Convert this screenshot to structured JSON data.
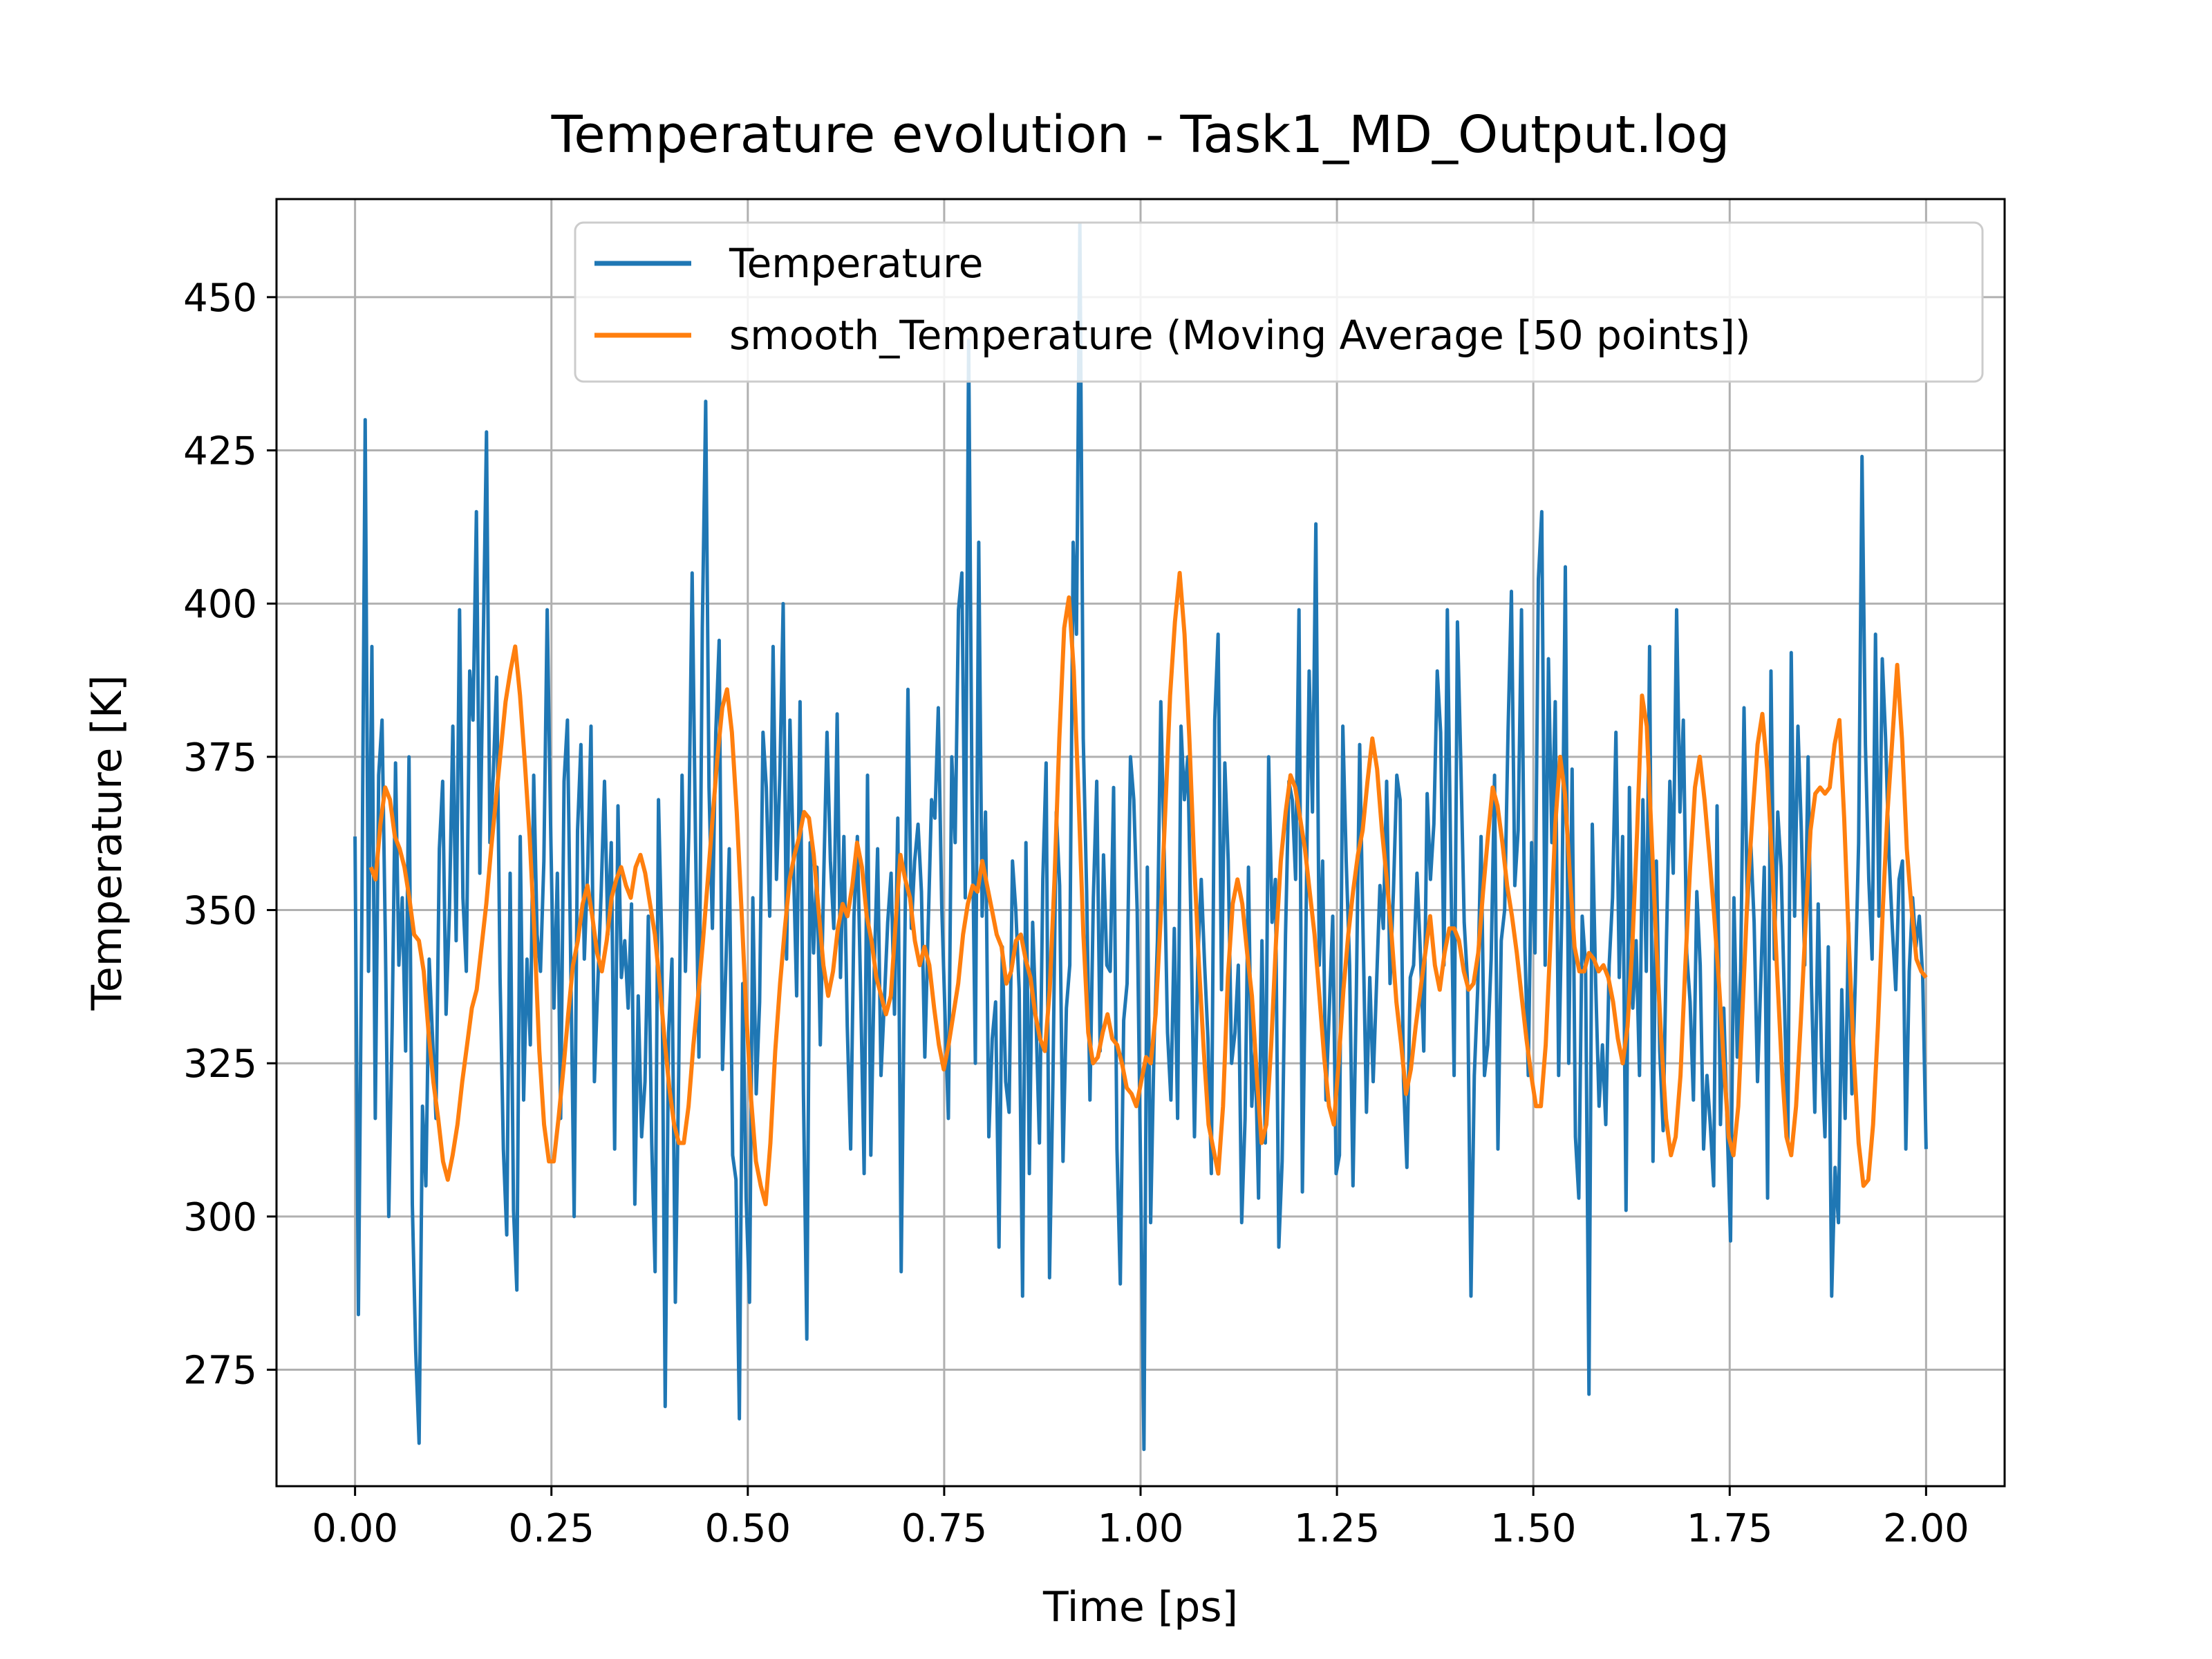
{
  "chart_data": {
    "type": "line",
    "title": "Temperature evolution - Task1_MD_Output.log",
    "xlabel": "Time [ps]",
    "ylabel": "Temperature [K]",
    "xlim": [
      -0.1,
      2.1
    ],
    "ylim": [
      256,
      466
    ],
    "xticks": [
      0.0,
      0.25,
      0.5,
      0.75,
      1.0,
      1.25,
      1.5,
      1.75,
      2.0
    ],
    "xtick_labels": [
      "0.00",
      "0.25",
      "0.50",
      "0.75",
      "1.00",
      "1.25",
      "1.50",
      "1.75",
      "2.00"
    ],
    "yticks": [
      275,
      300,
      325,
      350,
      375,
      400,
      425,
      450
    ],
    "ytick_labels": [
      "275",
      "300",
      "325",
      "350",
      "375",
      "400",
      "425",
      "450"
    ],
    "grid": true,
    "legend_position": "top-right",
    "series": [
      {
        "name": "Temperature",
        "color": "#1f77b4",
        "x_start": 0.0,
        "x_end": 2.0,
        "values": [
          362,
          284,
          348,
          430,
          340,
          393,
          316,
          372,
          381,
          345,
          300,
          331,
          374,
          341,
          352,
          327,
          375,
          302,
          278,
          263,
          318,
          305,
          342,
          329,
          316,
          360,
          371,
          333,
          350,
          380,
          345,
          399,
          352,
          340,
          389,
          381,
          415,
          356,
          393,
          428,
          361,
          372,
          388,
          339,
          311,
          297,
          356,
          301,
          288,
          362,
          319,
          342,
          328,
          372,
          346,
          340,
          358,
          399,
          364,
          334,
          356,
          316,
          371,
          381,
          340,
          300,
          363,
          377,
          342,
          357,
          380,
          322,
          338,
          353,
          371,
          346,
          361,
          311,
          367,
          339,
          345,
          334,
          351,
          302,
          336,
          313,
          322,
          349,
          312,
          291,
          368,
          344,
          269,
          330,
          342,
          286,
          323,
          372,
          340,
          363,
          405,
          361,
          326,
          396,
          433,
          370,
          347,
          379,
          394,
          324,
          341,
          360,
          310,
          306,
          267,
          338,
          303,
          286,
          352,
          320,
          335,
          379,
          370,
          349,
          393,
          355,
          372,
          400,
          342,
          381,
          358,
          336,
          384,
          320,
          280,
          361,
          343,
          357,
          328,
          355,
          379,
          358,
          347,
          382,
          339,
          362,
          331,
          311,
          349,
          362,
          336,
          307,
          372,
          310,
          340,
          360,
          323,
          335,
          348,
          356,
          333,
          365,
          291,
          341,
          386,
          347,
          358,
          364,
          353,
          326,
          347,
          368,
          365,
          383,
          351,
          333,
          316,
          375,
          361,
          399,
          405,
          352,
          443,
          369,
          325,
          410,
          349,
          366,
          313,
          329,
          335,
          295,
          344,
          322,
          317,
          358,
          350,
          337,
          287,
          361,
          307,
          348,
          332,
          312,
          355,
          374,
          290,
          322,
          366,
          354,
          309,
          334,
          341,
          410,
          395,
          462,
          378,
          353,
          319,
          352,
          371,
          327,
          359,
          341,
          340,
          370,
          311,
          289,
          332,
          338,
          375,
          368,
          350,
          308,
          262,
          357,
          299,
          328,
          345,
          384,
          360,
          330,
          319,
          347,
          316,
          380,
          368,
          375,
          346,
          313,
          342,
          355,
          341,
          329,
          307,
          381,
          395,
          337,
          374,
          358,
          325,
          330,
          341,
          299,
          316,
          357,
          318,
          328,
          303,
          345,
          312,
          375,
          348,
          355,
          295,
          309,
          346,
          371,
          368,
          355,
          399,
          304,
          345,
          389,
          366,
          413,
          341,
          358,
          319,
          334,
          349,
          307,
          310,
          380,
          358,
          341,
          305,
          336,
          377,
          346,
          317,
          339,
          322,
          338,
          354,
          347,
          371,
          338,
          353,
          372,
          368,
          322,
          308,
          339,
          341,
          356,
          343,
          327,
          369,
          355,
          364,
          389,
          379,
          341,
          399,
          358,
          323,
          397,
          374,
          348,
          338,
          287,
          323,
          337,
          362,
          323,
          328,
          342,
          372,
          311,
          345,
          350,
          379,
          402,
          354,
          363,
          399,
          344,
          323,
          361,
          343,
          404,
          415,
          341,
          391,
          361,
          384,
          323,
          351,
          406,
          325,
          373,
          313,
          303,
          349,
          341,
          271,
          364,
          338,
          318,
          328,
          315,
          341,
          352,
          379,
          339,
          362,
          301,
          370,
          334,
          345,
          323,
          368,
          340,
          393,
          309,
          358,
          327,
          314,
          345,
          371,
          356,
          399,
          366,
          381,
          343,
          335,
          319,
          353,
          341,
          311,
          323,
          315,
          305,
          367,
          315,
          334,
          315,
          296,
          352,
          326,
          340,
          383,
          350,
          361,
          348,
          322,
          339,
          357,
          303,
          389,
          342,
          366,
          357,
          335,
          312,
          392,
          349,
          380,
          363,
          341,
          375,
          338,
          317,
          351,
          326,
          313,
          344,
          287,
          308,
          299,
          337,
          316,
          348,
          320,
          338,
          361,
          424,
          377,
          355,
          342,
          395,
          349,
          391,
          378,
          359,
          347,
          337,
          355,
          358,
          311,
          340,
          352,
          344,
          349,
          339,
          311
        ]
      },
      {
        "name": "smooth_Temperature (Moving Average [50 points])",
        "color": "#ff7f0e",
        "x_start": 0.02,
        "x_end": 2.0,
        "values": [
          357,
          355,
          364,
          370,
          368,
          362,
          360,
          357,
          352,
          346,
          345,
          340,
          330,
          322,
          316,
          309,
          306,
          310,
          315,
          322,
          328,
          334,
          337,
          344,
          351,
          360,
          368,
          376,
          384,
          389,
          393,
          385,
          374,
          362,
          346,
          327,
          315,
          309,
          309,
          316,
          324,
          333,
          341,
          345,
          351,
          354,
          349,
          343,
          340,
          345,
          352,
          355,
          357,
          354,
          352,
          357,
          359,
          356,
          351,
          346,
          338,
          329,
          321,
          315,
          312,
          312,
          318,
          328,
          336,
          345,
          355,
          365,
          375,
          383,
          386,
          379,
          366,
          350,
          333,
          319,
          309,
          305,
          302,
          312,
          327,
          338,
          347,
          355,
          359,
          362,
          366,
          365,
          359,
          350,
          341,
          336,
          340,
          347,
          351,
          349,
          354,
          361,
          357,
          349,
          345,
          339,
          336,
          333,
          336,
          348,
          359,
          355,
          352,
          345,
          341,
          344,
          341,
          334,
          328,
          324,
          328,
          333,
          338,
          346,
          351,
          354,
          353,
          358,
          354,
          350,
          346,
          344,
          338,
          340,
          345,
          346,
          342,
          339,
          333,
          329,
          327,
          337,
          355,
          378,
          396,
          401,
          389,
          368,
          346,
          330,
          325,
          326,
          330,
          333,
          329,
          328,
          325,
          321,
          320,
          318,
          322,
          326,
          325,
          333,
          348,
          366,
          385,
          397,
          405,
          395,
          378,
          358,
          341,
          327,
          315,
          311,
          307,
          318,
          339,
          351,
          355,
          351,
          343,
          336,
          323,
          312,
          315,
          328,
          345,
          358,
          366,
          372,
          370,
          365,
          360,
          353,
          346,
          336,
          326,
          318,
          315,
          325,
          337,
          346,
          353,
          359,
          363,
          371,
          378,
          373,
          363,
          355,
          346,
          335,
          328,
          320,
          324,
          331,
          337,
          343,
          349,
          341,
          337,
          343,
          347,
          347,
          345,
          340,
          337,
          338,
          343,
          353,
          362,
          370,
          367,
          361,
          354,
          349,
          343,
          336,
          329,
          323,
          318,
          318,
          328,
          345,
          364,
          375,
          369,
          356,
          344,
          340,
          340,
          343,
          342,
          340,
          341,
          339,
          335,
          329,
          325,
          331,
          344,
          363,
          385,
          380,
          362,
          344,
          329,
          316,
          310,
          313,
          323,
          341,
          357,
          370,
          375,
          368,
          359,
          349,
          338,
          325,
          313,
          310,
          318,
          336,
          354,
          366,
          377,
          382,
          373,
          358,
          341,
          325,
          313,
          310,
          318,
          332,
          348,
          363,
          369,
          370,
          369,
          370,
          377,
          381,
          365,
          344,
          326,
          312,
          305,
          306,
          315,
          331,
          350,
          366,
          378,
          390,
          378,
          360,
          350,
          342,
          340,
          339
        ]
      }
    ]
  }
}
